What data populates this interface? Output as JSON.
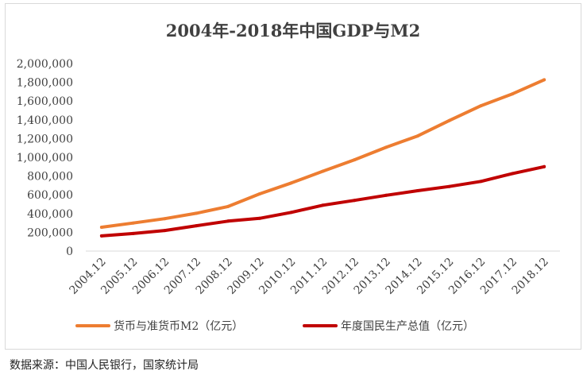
{
  "chart_data": {
    "type": "line",
    "title": "2004年-2018年中国GDP与M2",
    "categories": [
      "2004.12",
      "2005.12",
      "2006.12",
      "2007.12",
      "2008.12",
      "2009.12",
      "2010.12",
      "2011.12",
      "2012.12",
      "2013.12",
      "2014.12",
      "2015.12",
      "2016.12",
      "2017.12",
      "2018.12"
    ],
    "series": [
      {
        "name": "货币与准货币M2（亿元）",
        "color": "#ED7D31",
        "values": [
          254107,
          298756,
          345578,
          403442,
          475167,
          610225,
          725852,
          851591,
          974149,
          1106525,
          1228375,
          1392278,
          1550067,
          1676769,
          1826744
        ]
      },
      {
        "name": "年度国民生产总值（亿元）",
        "color": "#C00000",
        "values": [
          161840,
          187319,
          219439,
          270232,
          319516,
          349081,
          413030,
          489301,
          540367,
          595244,
          643974,
          689052,
          743586,
          827122,
          900309
        ]
      }
    ],
    "y_ticks": [
      "0",
      "200,000",
      "400,000",
      "600,000",
      "800,000",
      "1,000,000",
      "1,200,000",
      "1,400,000",
      "1,600,000",
      "1,800,000",
      "2,000,000"
    ],
    "ylim": [
      0,
      2000000
    ],
    "legend_position": "bottom",
    "grid": false
  },
  "source": "数据来源：中国人民银行，国家统计局"
}
